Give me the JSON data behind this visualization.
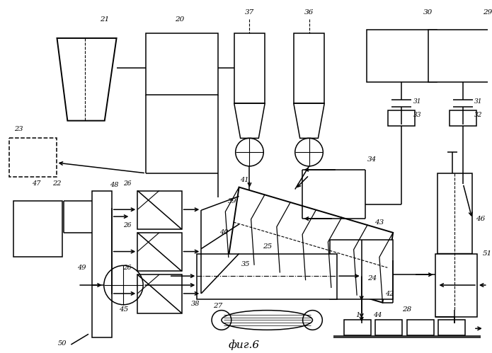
{
  "caption": "фиг.6",
  "bg_color": "#ffffff",
  "line_color": "#000000"
}
